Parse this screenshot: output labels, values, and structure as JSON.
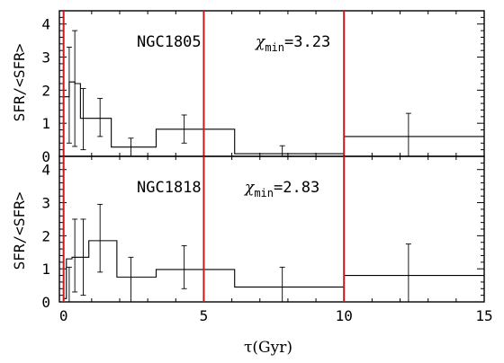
{
  "chart_data": [
    {
      "type": "line",
      "step": true,
      "panel": "top",
      "label": "NGC1805",
      "stat": {
        "symbol": "χ",
        "subscript": "min",
        "value": "=3.23"
      },
      "ylabel": "SFR/<SFR>",
      "ylim": [
        0,
        4.4
      ],
      "yticks": [
        "0",
        "1",
        "2",
        "3",
        "4"
      ],
      "xlim": [
        -0.15,
        15
      ],
      "bins": [
        [
          0.0,
          0.2,
          1.8
        ],
        [
          0.2,
          0.4,
          2.25
        ],
        [
          0.4,
          0.6,
          2.2
        ],
        [
          0.6,
          1.7,
          1.15
        ],
        [
          1.7,
          3.3,
          0.28
        ],
        [
          3.3,
          6.1,
          0.82
        ],
        [
          6.1,
          10.0,
          0.08
        ],
        [
          10.0,
          15.0,
          0.6
        ]
      ],
      "errorbars": [
        [
          0.2,
          1.8,
          0.4,
          3.3
        ],
        [
          0.4,
          2.25,
          0.3,
          3.8
        ],
        [
          0.7,
          1.15,
          0.2,
          2.05
        ],
        [
          1.3,
          1.15,
          0.6,
          1.75
        ],
        [
          2.4,
          0.28,
          0.0,
          0.55
        ],
        [
          4.3,
          0.82,
          0.4,
          1.25
        ],
        [
          7.8,
          0.08,
          0.0,
          0.32
        ],
        [
          12.3,
          0.6,
          0.0,
          1.3
        ]
      ],
      "vlines": [
        0,
        5,
        10
      ],
      "vline_color": "#c8191e"
    },
    {
      "type": "line",
      "step": true,
      "panel": "bottom",
      "label": "NGC1818",
      "stat": {
        "symbol": "χ",
        "subscript": "min",
        "value": "=2.83"
      },
      "ylabel": "SFR/<SFR>",
      "xlabel": "τ(Gyr)",
      "ylim": [
        0,
        4.4
      ],
      "yticks": [
        "0",
        "1",
        "2",
        "3",
        "4"
      ],
      "xlim": [
        -0.15,
        15
      ],
      "xticks": [
        "0",
        "5",
        "10",
        "15"
      ],
      "bins": [
        [
          0.0,
          0.1,
          0.1
        ],
        [
          0.1,
          0.3,
          1.3
        ],
        [
          0.3,
          0.9,
          1.35
        ],
        [
          0.9,
          1.9,
          1.85
        ],
        [
          1.9,
          3.3,
          0.75
        ],
        [
          3.3,
          6.1,
          0.98
        ],
        [
          6.1,
          10.0,
          0.45
        ],
        [
          10.0,
          15.0,
          0.8
        ]
      ],
      "errorbars": [
        [
          0.2,
          0.35,
          0.0,
          1.05
        ],
        [
          0.4,
          1.3,
          0.3,
          2.5
        ],
        [
          0.7,
          1.35,
          0.2,
          2.5
        ],
        [
          1.3,
          1.85,
          0.9,
          2.95
        ],
        [
          2.4,
          0.75,
          0.0,
          1.35
        ],
        [
          4.3,
          0.98,
          0.4,
          1.7
        ],
        [
          7.8,
          0.45,
          0.0,
          1.05
        ],
        [
          12.3,
          0.8,
          0.0,
          1.75
        ]
      ],
      "vlines": [
        0,
        5,
        10
      ],
      "vline_color": "#c8191e"
    }
  ]
}
